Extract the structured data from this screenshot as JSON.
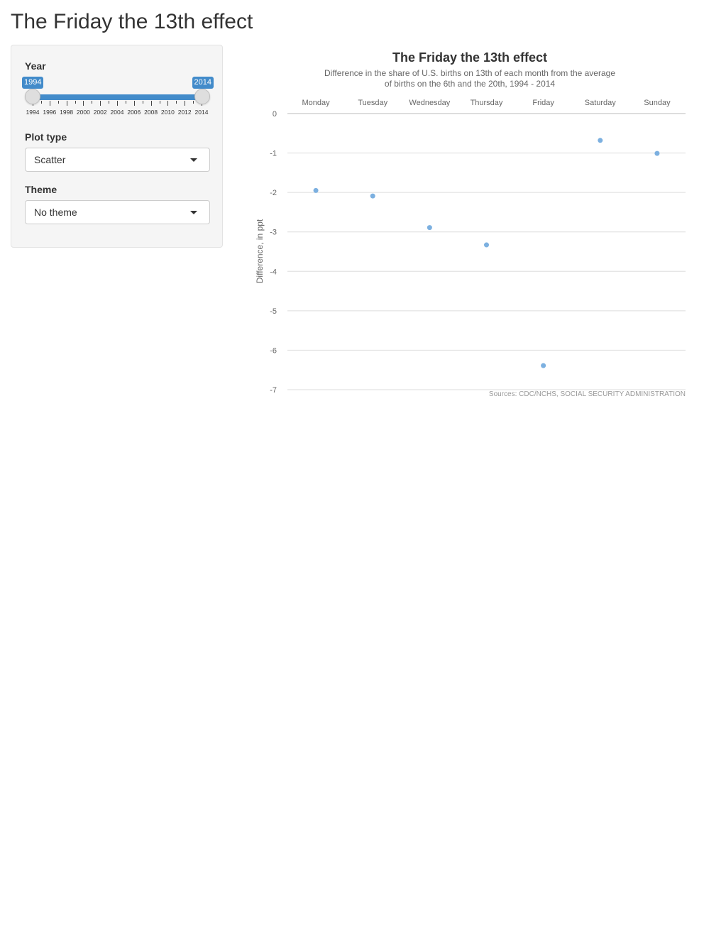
{
  "page": {
    "title": "The Friday the 13th effect"
  },
  "sidebar": {
    "year": {
      "label": "Year",
      "min": 1994,
      "max": 2014,
      "value_from": "1994",
      "value_to": "2014",
      "ticks": [
        "1994",
        "1996",
        "1998",
        "2000",
        "2002",
        "2004",
        "2006",
        "2008",
        "2010",
        "2012",
        "2014"
      ]
    },
    "plot_type": {
      "label": "Plot type",
      "value": "Scatter"
    },
    "theme": {
      "label": "Theme",
      "value": "No theme"
    }
  },
  "colors": {
    "accent": "#428bca",
    "point": "#7cb0e0",
    "grid": "#dddddd"
  },
  "chart_data": {
    "type": "scatter",
    "title": "The Friday the 13th effect",
    "subtitle_lines": [
      "Difference in the share of U.S. births on 13th of each month from the average",
      "of births on the 6th and the 20th, 1994 - 2014"
    ],
    "ylabel": "Difference, in ppt",
    "categories": [
      "Monday",
      "Tuesday",
      "Wednesday",
      "Thursday",
      "Friday",
      "Saturday",
      "Sunday"
    ],
    "values": [
      -1.95,
      -2.09,
      -2.89,
      -3.33,
      -6.39,
      -0.68,
      -1.01
    ],
    "ylim": [
      -7,
      0
    ],
    "yticks": [
      "0",
      "-1",
      "-2",
      "-3",
      "-4",
      "-5",
      "-6",
      "-7"
    ],
    "grid": true,
    "x_axis_position": "top",
    "source": "Sources: CDC/NCHS, SOCIAL SECURITY ADMINISTRATION"
  }
}
